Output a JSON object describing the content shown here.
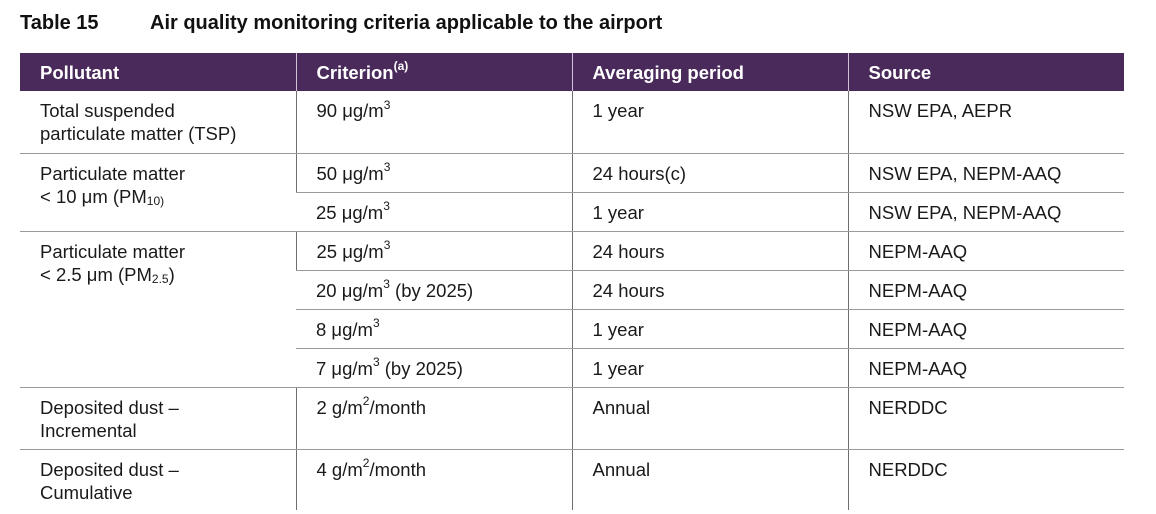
{
  "caption": {
    "number": "Table 15",
    "title": "Air quality monitoring criteria applicable to the airport"
  },
  "headers": {
    "pollutant": "Pollutant",
    "criterion": "Criterion",
    "criterion_note": "(a)",
    "averaging": "Averaging period",
    "source": "Source"
  },
  "rows": [
    {
      "pollutant_line1": "Total suspended",
      "pollutant_line2": "particulate matter (TSP)",
      "criterion": "90 μg/m",
      "criterion_sup": "3",
      "criterion_suffix": "",
      "averaging": "1 year",
      "source": "NSW EPA, AEPR"
    },
    {
      "pollutant_line1": "Particulate matter",
      "pollutant_line2": "< 10 μm (PM",
      "pollutant_sub": "10)",
      "pollutant_suffix": "",
      "criterion": "50 μg/m",
      "criterion_sup": "3",
      "criterion_suffix": "",
      "averaging": "24 hours(c)",
      "source": "NSW EPA, NEPM-AAQ"
    },
    {
      "criterion": "25 μg/m",
      "criterion_sup": "3",
      "criterion_suffix": "",
      "averaging": "1 year",
      "source": "NSW EPA, NEPM-AAQ"
    },
    {
      "pollutant_line1": "Particulate matter",
      "pollutant_line2": "< 2.5 μm (PM",
      "pollutant_sub": "2.5",
      "pollutant_suffix": ")",
      "criterion": "25 μg/m",
      "criterion_sup": "3",
      "criterion_suffix": "",
      "averaging": "24 hours",
      "source": "NEPM-AAQ"
    },
    {
      "criterion": "20 μg/m",
      "criterion_sup": "3",
      "criterion_suffix": " (by 2025)",
      "averaging": "24 hours",
      "source": "NEPM-AAQ"
    },
    {
      "criterion": "8 μg/m",
      "criterion_sup": "3",
      "criterion_suffix": "",
      "averaging": "1 year",
      "source": "NEPM-AAQ"
    },
    {
      "criterion": "7 μg/m",
      "criterion_sup": "3",
      "criterion_suffix": " (by 2025)",
      "averaging": "1 year",
      "source": "NEPM-AAQ"
    },
    {
      "pollutant_line1": "Deposited dust –",
      "pollutant_line2": "Incremental",
      "criterion": "2 g/m",
      "criterion_sup": "2",
      "criterion_suffix": "/month",
      "averaging": "Annual",
      "source": "NERDDC"
    },
    {
      "pollutant_line1": "Deposited dust –",
      "pollutant_line2": "Cumulative",
      "criterion": "4 g/m",
      "criterion_sup": "2",
      "criterion_suffix": "/month",
      "averaging": "Annual",
      "source": "NERDDC"
    }
  ]
}
